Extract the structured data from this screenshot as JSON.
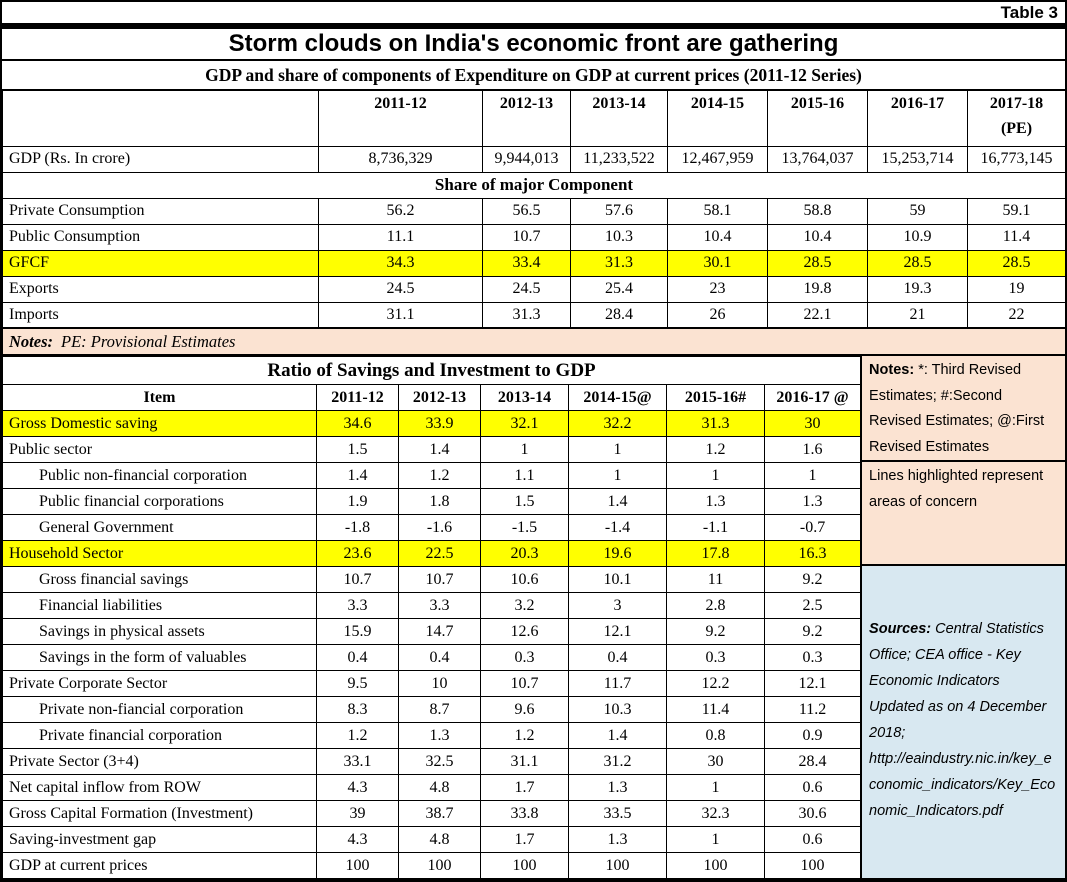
{
  "page": {
    "tag": "Table 3",
    "title": "Storm clouds on India's economic front are gathering"
  },
  "colors": {
    "highlight": "#ffff00",
    "notes_bg": "#fbe3d2",
    "sources_bg": "#d8e8f1"
  },
  "chart_data": [
    {
      "type": "table",
      "title": "GDP and share of components of Expenditure on GDP at current prices (2011-12 Series)",
      "col_headers": [
        [
          "2011-12"
        ],
        [
          "2012-13"
        ],
        [
          "2013-14"
        ],
        [
          "2014-15"
        ],
        [
          "2015-16"
        ],
        [
          "2016-17"
        ],
        [
          "2017-18",
          "(PE)"
        ]
      ],
      "gdp_row": {
        "label": "GDP (Rs. In crore)",
        "values": [
          "8,736,329",
          "9,944,013",
          "11,233,522",
          "12,467,959",
          "13,764,037",
          "15,253,714",
          "16,773,145"
        ]
      },
      "section_label": "Share of major Component",
      "rows": [
        {
          "label": "Private Consumption",
          "values": [
            "56.2",
            "56.5",
            "57.6",
            "58.1",
            "58.8",
            "59",
            "59.1"
          ],
          "highlight": false
        },
        {
          "label": "Public Consumption",
          "values": [
            "11.1",
            "10.7",
            "10.3",
            "10.4",
            "10.4",
            "10.9",
            "11.4"
          ],
          "highlight": false
        },
        {
          "label": "GFCF",
          "values": [
            "34.3",
            "33.4",
            "31.3",
            "30.1",
            "28.5",
            "28.5",
            "28.5"
          ],
          "highlight": true
        },
        {
          "label": "Exports",
          "values": [
            "24.5",
            "24.5",
            "25.4",
            "23",
            "19.8",
            "19.3",
            "19"
          ],
          "highlight": false
        },
        {
          "label": "Imports",
          "values": [
            "31.1",
            "31.3",
            "28.4",
            "26",
            "22.1",
            "21",
            "22"
          ],
          "highlight": false
        }
      ],
      "notes_label": "Notes:",
      "notes_text": "PE: Provisional Estimates"
    },
    {
      "type": "table",
      "title": "Ratio of Savings and Investment to GDP",
      "col_headers": [
        "Item",
        "2011-12",
        "2012-13",
        "2013-14",
        "2014-15@",
        "2015-16#",
        "2016-17 @"
      ],
      "rows": [
        {
          "label": "Gross Domestic saving",
          "values": [
            "34.6",
            "33.9",
            "32.1",
            "32.2",
            "31.3",
            "30"
          ],
          "highlight": true,
          "indent": false
        },
        {
          "label": "Public sector",
          "values": [
            "1.5",
            "1.4",
            "1",
            "1",
            "1.2",
            "1.6"
          ],
          "highlight": false,
          "indent": false
        },
        {
          "label": "Public non-financial corporation",
          "values": [
            "1.4",
            "1.2",
            "1.1",
            "1",
            "1",
            "1"
          ],
          "highlight": false,
          "indent": true
        },
        {
          "label": "Public financial corporations",
          "values": [
            "1.9",
            "1.8",
            "1.5",
            "1.4",
            "1.3",
            "1.3"
          ],
          "highlight": false,
          "indent": true
        },
        {
          "label": "General Government",
          "values": [
            "-1.8",
            "-1.6",
            "-1.5",
            "-1.4",
            "-1.1",
            "-0.7"
          ],
          "highlight": false,
          "indent": true
        },
        {
          "label": "Household Sector",
          "values": [
            "23.6",
            "22.5",
            "20.3",
            "19.6",
            "17.8",
            "16.3"
          ],
          "highlight": true,
          "indent": false
        },
        {
          "label": "Gross financial savings",
          "values": [
            "10.7",
            "10.7",
            "10.6",
            "10.1",
            "11",
            "9.2"
          ],
          "highlight": false,
          "indent": true
        },
        {
          "label": "Financial liabilities",
          "values": [
            "3.3",
            "3.3",
            "3.2",
            "3",
            "2.8",
            "2.5"
          ],
          "highlight": false,
          "indent": true
        },
        {
          "label": "Savings in physical assets",
          "values": [
            "15.9",
            "14.7",
            "12.6",
            "12.1",
            "9.2",
            "9.2"
          ],
          "highlight": false,
          "indent": true
        },
        {
          "label": "Savings in the form of valuables",
          "values": [
            "0.4",
            "0.4",
            "0.3",
            "0.4",
            "0.3",
            "0.3"
          ],
          "highlight": false,
          "indent": true
        },
        {
          "label": "Private Corporate Sector",
          "values": [
            "9.5",
            "10",
            "10.7",
            "11.7",
            "12.2",
            "12.1"
          ],
          "highlight": false,
          "indent": false
        },
        {
          "label": "Private non-fiancial corporation",
          "values": [
            "8.3",
            "8.7",
            "9.6",
            "10.3",
            "11.4",
            "11.2"
          ],
          "highlight": false,
          "indent": true
        },
        {
          "label": "Private financial corporation",
          "values": [
            "1.2",
            "1.3",
            "1.2",
            "1.4",
            "0.8",
            "0.9"
          ],
          "highlight": false,
          "indent": true
        },
        {
          "label": "Private Sector (3+4)",
          "values": [
            "33.1",
            "32.5",
            "31.1",
            "31.2",
            "30",
            "28.4"
          ],
          "highlight": false,
          "indent": false
        },
        {
          "label": "Net capital inflow from ROW",
          "values": [
            "4.3",
            "4.8",
            "1.7",
            "1.3",
            "1",
            "0.6"
          ],
          "highlight": false,
          "indent": false
        },
        {
          "label": "Gross Capital Formation (Investment)",
          "values": [
            "39",
            "38.7",
            "33.8",
            "33.5",
            "32.3",
            "30.6"
          ],
          "highlight": false,
          "indent": false
        },
        {
          "label": "Saving-investment gap",
          "values": [
            "4.3",
            "4.8",
            "1.7",
            "1.3",
            "1",
            "0.6"
          ],
          "highlight": false,
          "indent": false
        },
        {
          "label": "GDP at current prices",
          "values": [
            "100",
            "100",
            "100",
            "100",
            "100",
            "100"
          ],
          "highlight": false,
          "indent": false
        }
      ]
    }
  ],
  "side_panel": {
    "notes1_label": "Notes:",
    "notes1_text": " *: Third Revised Estimates; #:Second Revised Estimates; @:First Revised Estimates",
    "notes2_text": "Lines highlighted represent areas of concern",
    "sources_label": "Sources:",
    "sources_text": " Central Statistics Office; CEA office - Key Economic Indicators Updated as on 4 December 2018; http://eaindustry.nic.in/key_economic_indicators/Key_Economic_Indicators.pdf"
  }
}
